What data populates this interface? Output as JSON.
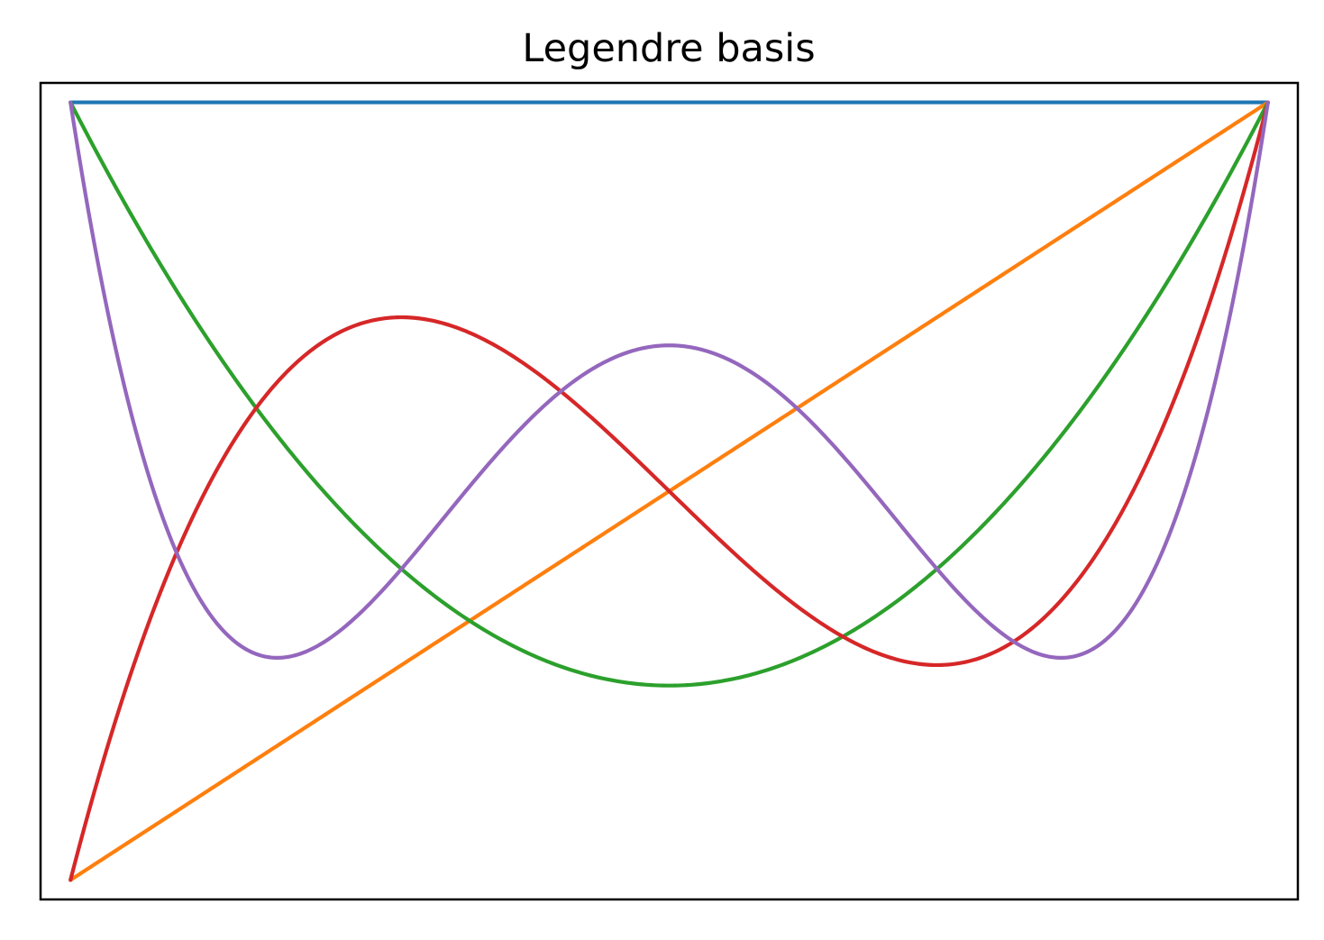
{
  "chart_data": {
    "type": "line",
    "title": "Legendre basis",
    "xlabel": "",
    "ylabel": "",
    "xlim": [
      -1.05,
      1.05
    ],
    "ylim": [
      -1.05,
      1.05
    ],
    "x_range": [
      -1,
      1
    ],
    "ticks_visible": false,
    "grid": false,
    "legend": "none",
    "series": [
      {
        "degree": 0,
        "color": "#1f77b4",
        "coefficients": [
          1
        ]
      },
      {
        "degree": 1,
        "color": "#ff7f0e",
        "coefficients": [
          0,
          1
        ]
      },
      {
        "degree": 2,
        "color": "#2ca02c",
        "coefficients": [
          -0.5,
          0,
          1.5
        ]
      },
      {
        "degree": 3,
        "color": "#d62728",
        "coefficients": [
          0,
          -1.5,
          0,
          2.5
        ]
      },
      {
        "degree": 4,
        "color": "#9467bd",
        "coefficients": [
          0.375,
          0,
          -3.75,
          0,
          4.375
        ]
      }
    ]
  }
}
